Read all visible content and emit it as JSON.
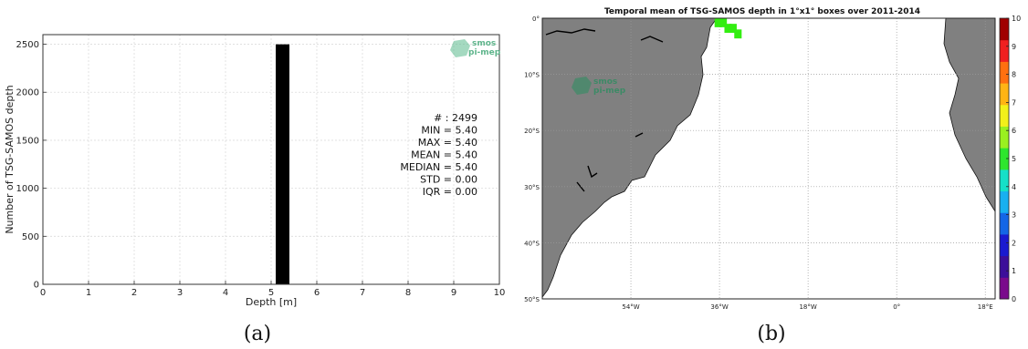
{
  "chart_data": [
    {
      "type": "bar",
      "title": "",
      "xlabel": "Depth [m]",
      "ylabel": "Number of TSG-SAMOS depth",
      "xlim": [
        0,
        10
      ],
      "ylim": [
        0,
        2600
      ],
      "xticks": [
        "0",
        "1",
        "2",
        "3",
        "4",
        "5",
        "6",
        "7",
        "8",
        "9",
        "10"
      ],
      "yticks": [
        "0",
        "500",
        "1000",
        "1500",
        "2000",
        "2500"
      ],
      "grid": true,
      "bars": [
        {
          "x_start": 5.1,
          "x_end": 5.4,
          "value": 2499,
          "color": "#000000"
        }
      ],
      "stats": [
        "# : 2499",
        "MIN = 5.40",
        "MAX =  5.40",
        "MEAN = 5.40",
        "MEDIAN = 5.40",
        "STD = 0.00",
        "IQR = 0.00"
      ],
      "logo": {
        "line1": "smos",
        "line2": "pi-mep"
      },
      "caption": "(a)"
    },
    {
      "type": "heatmap",
      "title": "Temporal mean of TSG-SAMOS depth in 1°x1° boxes over 2011-2014",
      "lon_range": [
        -72,
        20
      ],
      "lat_range": [
        -50,
        0
      ],
      "xticks": [
        {
          "lon": -54,
          "label": "54°W"
        },
        {
          "lon": -36,
          "label": "36°W"
        },
        {
          "lon": -18,
          "label": "18°W"
        },
        {
          "lon": 0,
          "label": "0°"
        },
        {
          "lon": 18,
          "label": "18°E"
        }
      ],
      "yticks": [
        {
          "lat": 0,
          "label": "0°"
        },
        {
          "lat": -10,
          "label": "10°S"
        },
        {
          "lat": -20,
          "label": "20°S"
        },
        {
          "lat": -30,
          "label": "30°S"
        },
        {
          "lat": -40,
          "label": "40°S"
        },
        {
          "lat": -50,
          "label": "50°S"
        }
      ],
      "grid": true,
      "colorbar": {
        "min": 0,
        "max": 10,
        "ticks": [
          "0",
          "1",
          "2",
          "3",
          "4",
          "5",
          "6",
          "7",
          "8",
          "9",
          "10"
        ],
        "colors": [
          "#7a0a8c",
          "#3c0f9a",
          "#1a1ad0",
          "#1466e6",
          "#18b0f0",
          "#15e0c8",
          "#2ee62e",
          "#9af020",
          "#f2f01a",
          "#ffb414",
          "#ff7010",
          "#f02020",
          "#a00000"
        ]
      },
      "cells": [
        {
          "lon": -37,
          "lat": 0,
          "value": 5.4
        },
        {
          "lon": -36,
          "lat": 0,
          "value": 5.4
        },
        {
          "lon": -35,
          "lat": -1,
          "value": 5.4
        },
        {
          "lon": -34,
          "lat": -1,
          "value": 5.4
        },
        {
          "lon": -33,
          "lat": -2,
          "value": 5.4
        }
      ],
      "cell_color": "#33ee11",
      "land_color": "#808080",
      "logo": {
        "line1": "smos",
        "line2": "pi-mep"
      },
      "caption": "(b)"
    }
  ]
}
